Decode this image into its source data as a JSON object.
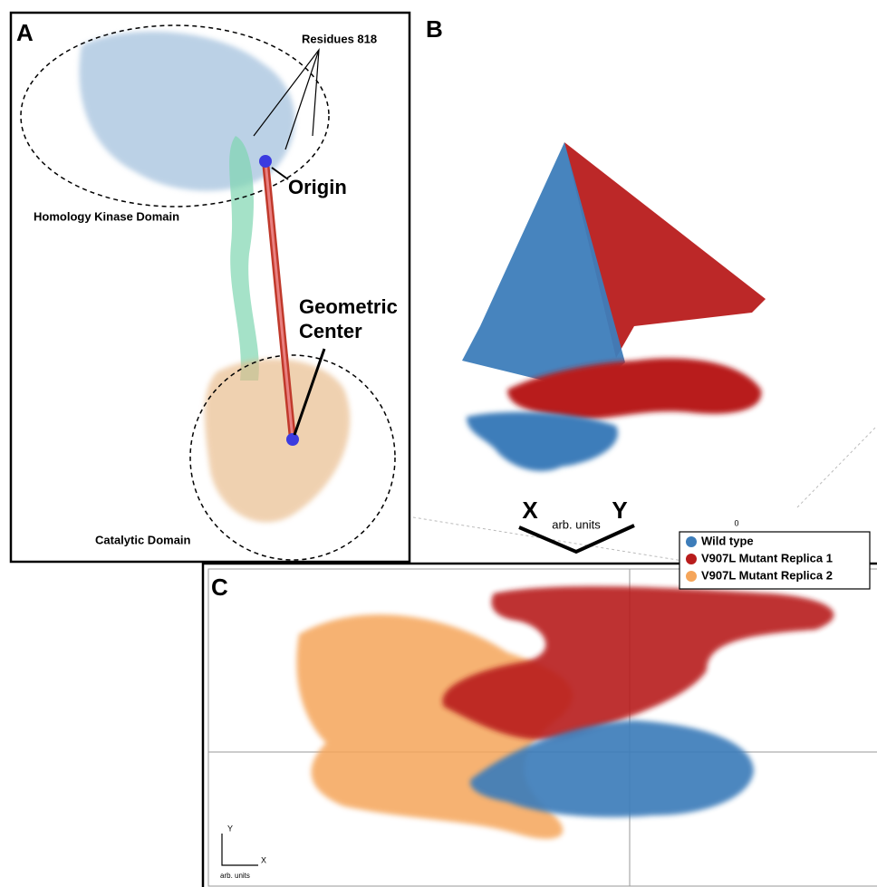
{
  "panels": {
    "a": {
      "label": "A",
      "residues": "Residues 818",
      "origin": "Origin",
      "geometric_center": [
        "Geometric",
        "Center"
      ],
      "kinase_domain": "Homology Kinase Domain",
      "catalytic_domain": "Catalytic Domain"
    },
    "b": {
      "label": "B",
      "axis_x": "X",
      "axis_y": "Y",
      "units": "arb. units",
      "tick": "0"
    },
    "legend": [
      "Wild type",
      "V907L Mutant Replica 1",
      "V907L Mutant Replica 2"
    ],
    "c": {
      "label": "C",
      "axis_y": "Y",
      "axis_x": "X",
      "units": "arb. units"
    }
  }
}
